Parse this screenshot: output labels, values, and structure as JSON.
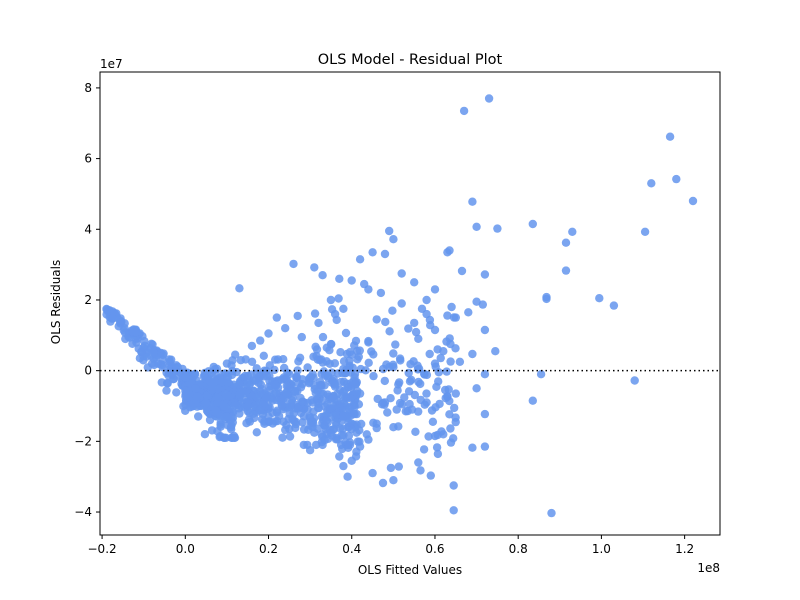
{
  "chart_data": {
    "type": "scatter",
    "title": "OLS Model - Residual Plot",
    "xlabel": "OLS Fitted Values",
    "ylabel": "OLS Residuals",
    "x_offset_label": "1e8",
    "y_offset_label": "1e7",
    "xlim": [
      -0.205,
      1.285
    ],
    "ylim": [
      -4.65,
      8.45
    ],
    "x_ticks": [
      -0.2,
      0.0,
      0.2,
      0.4,
      0.6,
      0.8,
      1.0,
      1.2
    ],
    "x_tick_labels": [
      "−0.2",
      "0.0",
      "0.2",
      "0.4",
      "0.6",
      "0.8",
      "1.0",
      "1.2"
    ],
    "y_ticks": [
      -4,
      -2,
      0,
      2,
      4,
      6,
      8
    ],
    "y_tick_labels": [
      "−4",
      "−2",
      "0",
      "2",
      "4",
      "6",
      "8"
    ],
    "reference_line": {
      "y": 0,
      "style": "dotted",
      "color": "#000000"
    },
    "grid": false,
    "point_color": "#6495ED",
    "point_alpha": 0.85,
    "series": [
      {
        "points": [
          [
            0.67,
            7.35
          ],
          [
            0.73,
            7.7
          ],
          [
            1.165,
            6.62
          ],
          [
            1.12,
            5.3
          ],
          [
            1.18,
            5.42
          ],
          [
            1.22,
            4.8
          ],
          [
            0.69,
            4.78
          ],
          [
            0.7,
            4.07
          ],
          [
            0.75,
            4.02
          ],
          [
            0.835,
            4.15
          ],
          [
            0.93,
            3.93
          ],
          [
            1.105,
            3.93
          ],
          [
            0.915,
            3.62
          ],
          [
            0.915,
            2.83
          ],
          [
            0.868,
            2.03
          ],
          [
            0.868,
            2.08
          ],
          [
            0.995,
            2.05
          ],
          [
            1.03,
            1.84
          ],
          [
            0.855,
            -0.1
          ],
          [
            1.08,
            -0.28
          ],
          [
            0.835,
            -0.85
          ],
          [
            0.88,
            -4.03
          ],
          [
            0.645,
            -3.95
          ],
          [
            0.645,
            -3.25
          ],
          [
            0.59,
            -2.97
          ],
          [
            0.5,
            -3.1
          ],
          [
            0.475,
            -3.18
          ],
          [
            0.45,
            -2.9
          ],
          [
            0.39,
            -3.0
          ],
          [
            0.38,
            -2.7
          ],
          [
            0.4,
            -2.55
          ],
          [
            0.37,
            -2.43
          ],
          [
            0.56,
            -2.6
          ],
          [
            0.69,
            -2.18
          ],
          [
            0.72,
            -2.15
          ],
          [
            0.6,
            -1.85
          ],
          [
            0.65,
            -0.65
          ],
          [
            0.72,
            -1.23
          ],
          [
            0.745,
            0.55
          ],
          [
            0.69,
            0.47
          ],
          [
            0.68,
            1.65
          ],
          [
            0.715,
            1.87
          ],
          [
            0.72,
            2.72
          ],
          [
            0.665,
            2.82
          ],
          [
            0.63,
            3.35
          ],
          [
            0.635,
            3.4
          ],
          [
            0.5,
            3.72
          ],
          [
            0.49,
            3.95
          ],
          [
            0.26,
            3.02
          ],
          [
            0.31,
            2.92
          ],
          [
            0.33,
            2.7
          ],
          [
            0.13,
            2.33
          ],
          [
            0.42,
            3.15
          ],
          [
            0.45,
            3.35
          ],
          [
            0.48,
            3.3
          ],
          [
            0.4,
            2.55
          ],
          [
            0.37,
            2.6
          ],
          [
            0.44,
            2.3
          ],
          [
            0.55,
            2.5
          ],
          [
            0.6,
            2.3
          ],
          [
            0.64,
            1.8
          ],
          [
            0.7,
            1.95
          ],
          [
            0.72,
            1.15
          ],
          [
            0.7,
            -0.5
          ],
          [
            0.72,
            -0.1
          ],
          [
            0.65,
            1.5
          ],
          [
            0.35,
            2.0
          ],
          [
            0.38,
            1.75
          ],
          [
            0.52,
            1.9
          ],
          [
            0.58,
            1.6
          ],
          [
            0.46,
            1.45
          ],
          [
            0.56,
            0.9
          ],
          [
            0.62,
            0.55
          ],
          [
            0.66,
            0.25
          ],
          [
            0.6,
            0.2
          ],
          [
            0.5,
            0.1
          ],
          [
            0.54,
            -0.3
          ],
          [
            0.58,
            -0.9
          ],
          [
            0.62,
            -1.8
          ],
          [
            0.44,
            -1.95
          ],
          [
            0.42,
            -2.15
          ],
          [
            0.33,
            -2.1
          ],
          [
            0.3,
            -2.25
          ],
          [
            0.25,
            -1.65
          ],
          [
            0.2,
            -1.3
          ],
          [
            0.15,
            -1.0
          ],
          [
            0.38,
            -1.3
          ],
          [
            0.46,
            -1.5
          ],
          [
            0.5,
            -1.6
          ],
          [
            0.53,
            -1.15
          ],
          [
            0.48,
            -0.9
          ],
          [
            0.42,
            -0.65
          ],
          [
            0.36,
            -0.45
          ],
          [
            0.3,
            -0.2
          ],
          [
            0.28,
            0.95
          ],
          [
            0.24,
            1.2
          ],
          [
            0.2,
            1.05
          ],
          [
            0.16,
            0.7
          ],
          [
            0.12,
            0.45
          ],
          [
            0.1,
            0.2
          ],
          [
            0.44,
            0.8
          ],
          [
            0.4,
            0.45
          ],
          [
            0.34,
            0.65
          ],
          [
            0.32,
            1.35
          ],
          [
            0.27,
            1.55
          ],
          [
            0.22,
            1.5
          ],
          [
            0.18,
            0.85
          ],
          [
            0.55,
            1.35
          ],
          [
            0.52,
            2.75
          ],
          [
            0.58,
            2.0
          ],
          [
            0.6,
            1.15
          ],
          [
            0.47,
            2.2
          ],
          [
            0.43,
            2.45
          ],
          [
            0.36,
            1.6
          ]
        ]
      }
    ]
  }
}
